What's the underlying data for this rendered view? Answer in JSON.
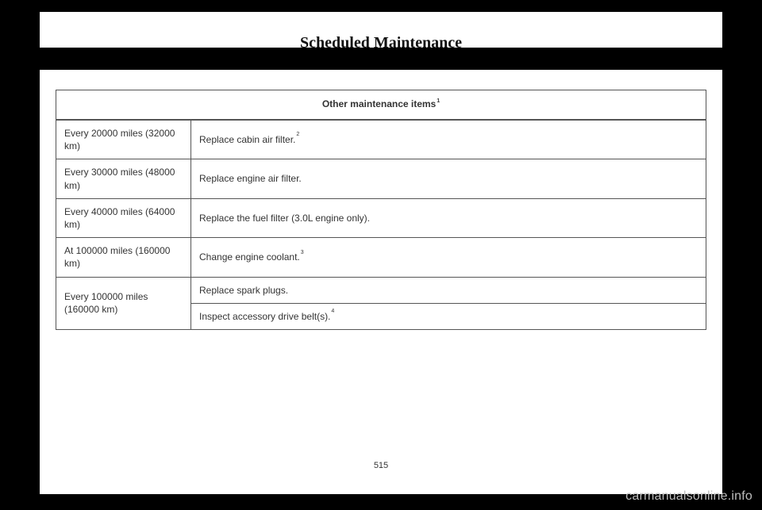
{
  "title": "Scheduled Maintenance",
  "table": {
    "header": "Other maintenance items",
    "header_sup": "1",
    "rows": [
      {
        "interval": "Every 20000 miles (32000 km)",
        "items": [
          {
            "text": "Replace cabin air filter.",
            "sup": "2"
          }
        ]
      },
      {
        "interval": "Every 30000 miles (48000 km)",
        "items": [
          {
            "text": "Replace engine air filter.",
            "sup": ""
          }
        ]
      },
      {
        "interval": "Every 40000 miles (64000 km)",
        "items": [
          {
            "text": "Replace the fuel filter (3.0L engine only).",
            "sup": ""
          }
        ]
      },
      {
        "interval": "At 100000 miles (160000 km)",
        "items": [
          {
            "text": "Change engine coolant.",
            "sup": "3"
          }
        ]
      },
      {
        "interval": "Every 100000 miles (160000 km)",
        "items": [
          {
            "text": "Replace spark plugs.",
            "sup": ""
          },
          {
            "text": "Inspect accessory drive belt(s).",
            "sup": "4"
          }
        ]
      }
    ]
  },
  "page_number": "515",
  "watermark": "carmanualsonline.info"
}
